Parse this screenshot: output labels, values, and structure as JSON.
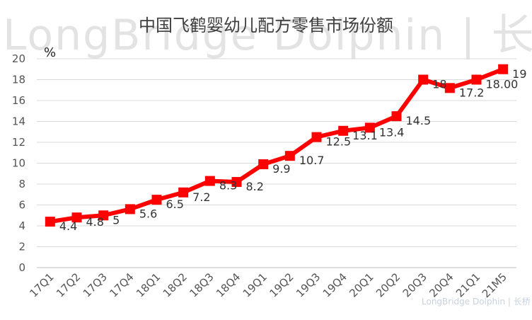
{
  "chart_data": {
    "type": "line",
    "title": "中国飞鹤婴幼儿配方零售市场份额",
    "ylabel": "%",
    "ylim": [
      0,
      20
    ],
    "yticks": [
      "0",
      "2",
      "4",
      "6",
      "8",
      "10",
      "12",
      "14",
      "16",
      "18",
      "20"
    ],
    "grid": true,
    "categories": [
      "17Q1",
      "17Q2",
      "17Q3",
      "17Q4",
      "18Q1",
      "18Q2",
      "18Q3",
      "18Q4",
      "19Q1",
      "19Q2",
      "19Q3",
      "19Q4",
      "20Q1",
      "20Q2",
      "20Q3",
      "20Q4",
      "21Q1",
      "21M5"
    ],
    "series": [
      {
        "values": [
          4.4,
          4.8,
          5.0,
          5.6,
          6.5,
          7.2,
          8.3,
          8.2,
          9.9,
          10.7,
          12.5,
          13.1,
          13.4,
          14.5,
          18.0,
          17.2,
          18.0,
          19.0
        ],
        "labels": [
          "4.4",
          "4.8",
          "5",
          "5.6",
          "6.5",
          "7.2",
          "8.3",
          "8.2",
          "9.9",
          "10.7",
          "12.5",
          "13.1",
          "13.4",
          "14.5",
          "18",
          "17.2",
          "18.00",
          "19"
        ],
        "color": "#ff0000"
      }
    ]
  },
  "watermark": {
    "text": "LongBridge Dolphin | 长桥海豚投研",
    "small_text": "LongBridge Dolphin | 长桥"
  }
}
